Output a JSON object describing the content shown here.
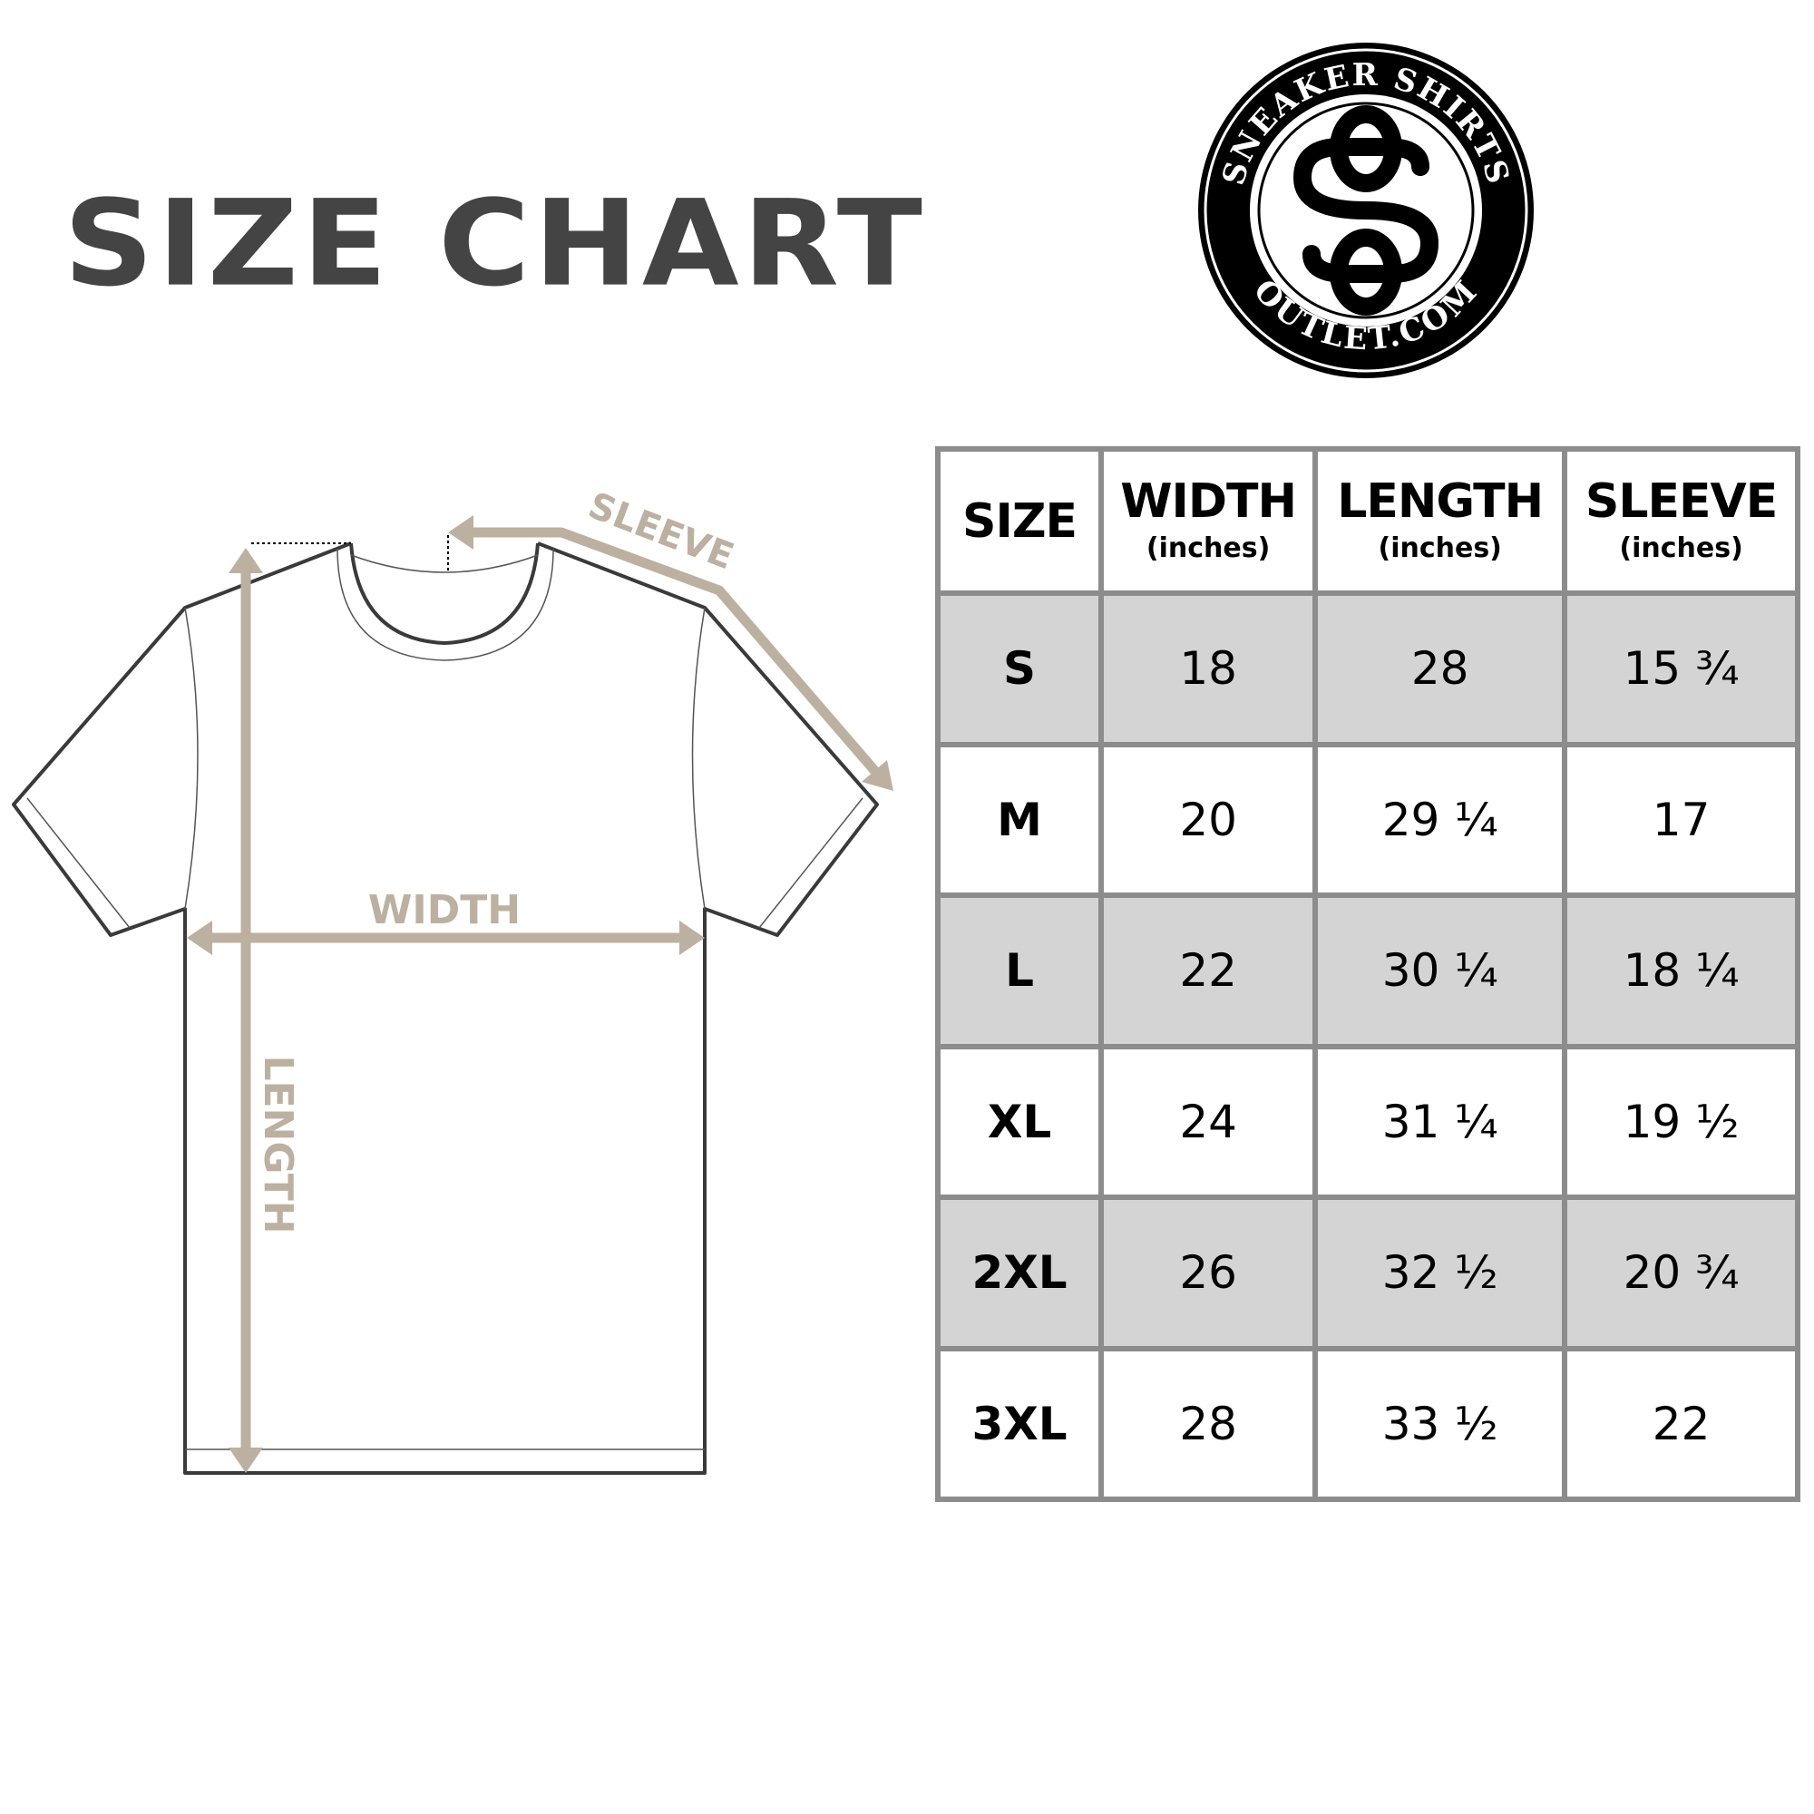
{
  "title": "SIZE CHART",
  "logo": {
    "top_text": "SNEAKER SHIRTS",
    "bottom_text": "OUTLET.COM",
    "monogram": "SO"
  },
  "diagram": {
    "sleeve_label": "SLEEVE",
    "width_label": "WIDTH",
    "length_label": "LENGTH"
  },
  "colors": {
    "title": "#444444",
    "arrow": "#bcb0a1",
    "row_shade": "#d4d4d4",
    "grid": "#8c8c8c"
  },
  "table": {
    "headers": [
      {
        "label": "SIZE",
        "unit": ""
      },
      {
        "label": "WIDTH",
        "unit": "(inches)"
      },
      {
        "label": "LENGTH",
        "unit": "(inches)"
      },
      {
        "label": "SLEEVE",
        "unit": "(inches)"
      }
    ],
    "rows": [
      [
        "S",
        "18",
        "28",
        "15 ¾"
      ],
      [
        "M",
        "20",
        "29 ¼",
        "17"
      ],
      [
        "L",
        "22",
        "30 ¼",
        "18 ¼"
      ],
      [
        "XL",
        "24",
        "31 ¼",
        "19 ½"
      ],
      [
        "2XL",
        "26",
        "32 ½",
        "20 ¾"
      ],
      [
        "3XL",
        "28",
        "33 ½",
        "22"
      ]
    ]
  }
}
